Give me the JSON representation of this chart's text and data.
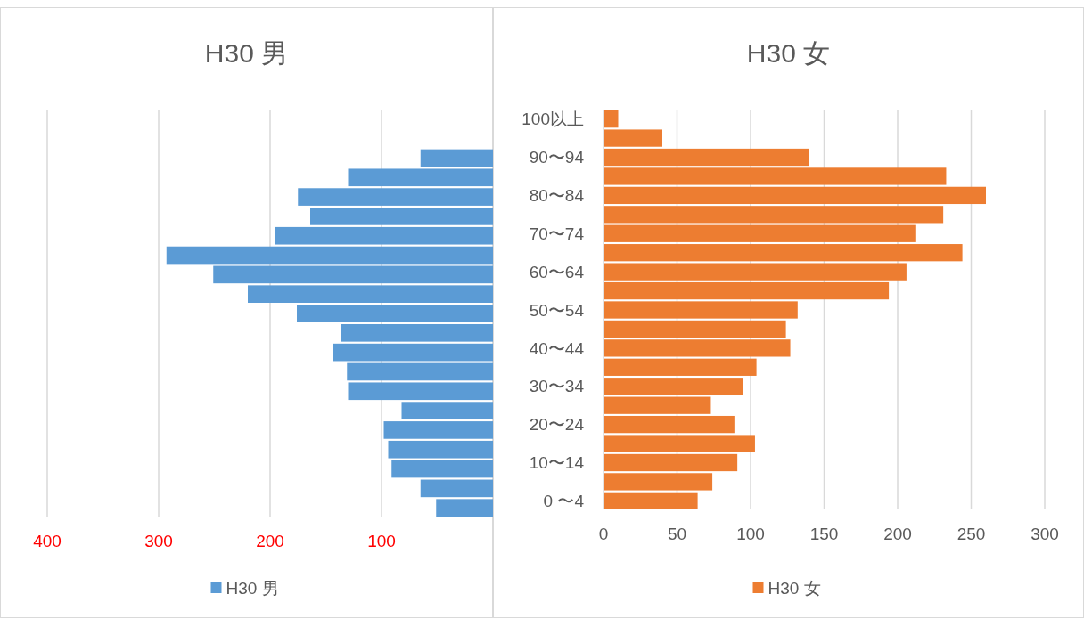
{
  "chart_data": [
    {
      "type": "bar",
      "orientation": "horizontal",
      "title": "H30 男",
      "categories": [
        null,
        null,
        null,
        null,
        null,
        null,
        null,
        null,
        null,
        null,
        null,
        null,
        null,
        null,
        null,
        null,
        null,
        null,
        null,
        null,
        null
      ],
      "series": [
        {
          "name": "H30 男",
          "color": "#5b9bd5",
          "values": [
            null,
            null,
            65,
            130,
            175,
            164,
            196,
            293,
            251,
            220,
            176,
            136,
            144,
            131,
            130,
            82,
            98,
            94,
            91,
            65,
            51
          ]
        }
      ],
      "xlim": [
        400,
        0
      ],
      "xticks": [
        400,
        300,
        200,
        100
      ],
      "grid": "x",
      "legend": "bottom",
      "tick_labels": "x"
    },
    {
      "type": "bar",
      "orientation": "horizontal",
      "title": "H30 女",
      "categories": [
        "100以上",
        null,
        "90〜94",
        null,
        "80〜84",
        null,
        "70〜74",
        null,
        "60〜64",
        null,
        "50〜54",
        null,
        "40〜44",
        null,
        "30〜34",
        null,
        "20〜24",
        null,
        "10〜14",
        null,
        "0 〜4"
      ],
      "series": [
        {
          "name": "H30 女",
          "color": "#ed7d31",
          "values": [
            10,
            40,
            140,
            233,
            260,
            231,
            212,
            244,
            206,
            194,
            132,
            124,
            127,
            104,
            95,
            73,
            89,
            103,
            91,
            74,
            64
          ]
        }
      ],
      "xlim": [
        0,
        300
      ],
      "xticks": [
        0,
        50,
        100,
        150,
        200,
        250,
        300
      ],
      "grid": "x",
      "legend": "bottom"
    }
  ]
}
